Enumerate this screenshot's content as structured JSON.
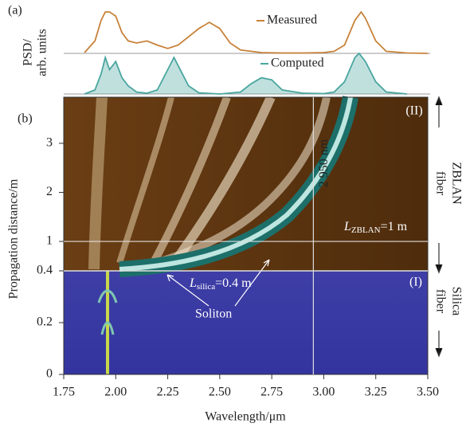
{
  "chart_data": {
    "type": "spectrogram",
    "panel_a_label": "(a)",
    "panel_b_label": "(b)",
    "psd_label": [
      "PSD/",
      "arb. units"
    ],
    "x_label": "Wavelength/μm",
    "y_label": "Propagation distance/m",
    "xlim": [
      1.75,
      3.5
    ],
    "xticks": [
      1.75,
      {
        "value": 2,
        "label": "2.00"
      },
      2.25,
      {
        "value": 2.5,
        "label": "2.50"
      },
      2.75,
      {
        "value": 3,
        "label": "3.00"
      },
      3.25,
      {
        "value": 3.5,
        "label": "3.50"
      }
    ],
    "spectra_ylim": [
      0,
      1
    ],
    "series": [
      {
        "name": "Measured",
        "color": "#c8823a",
        "x": [
          1.85,
          1.9,
          1.93,
          1.95,
          1.97,
          2.0,
          2.03,
          2.06,
          2.1,
          2.15,
          2.2,
          2.25,
          2.3,
          2.35,
          2.4,
          2.45,
          2.5,
          2.55,
          2.6,
          2.7,
          2.8,
          2.9,
          3.0,
          3.05,
          3.1,
          3.15,
          3.18,
          3.2,
          3.25,
          3.3,
          3.4,
          3.5
        ],
        "values": [
          0.02,
          0.3,
          0.8,
          1,
          1,
          0.9,
          0.5,
          0.3,
          0.25,
          0.3,
          0.2,
          0.12,
          0.2,
          0.4,
          0.6,
          0.75,
          0.6,
          0.25,
          0.08,
          0.02,
          0.01,
          0.01,
          0.02,
          0.05,
          0.2,
          0.8,
          1,
          0.85,
          0.3,
          0.05,
          0.01,
          0
        ]
      },
      {
        "name": "Computed",
        "color": "#4aa6a0",
        "x": [
          1.85,
          1.9,
          1.93,
          1.95,
          1.97,
          2.0,
          2.03,
          2.06,
          2.1,
          2.15,
          2.2,
          2.25,
          2.28,
          2.3,
          2.35,
          2.4,
          2.5,
          2.6,
          2.65,
          2.7,
          2.75,
          2.8,
          2.9,
          3.0,
          3.05,
          3.1,
          3.15,
          3.17,
          3.2,
          3.25,
          3.3,
          3.4
        ],
        "values": [
          0,
          0.1,
          0.5,
          0.9,
          0.6,
          0.8,
          0.4,
          0.2,
          0.05,
          0.02,
          0.1,
          0.6,
          0.9,
          0.7,
          0.2,
          0.03,
          0,
          0.05,
          0.25,
          0.4,
          0.35,
          0.1,
          0.02,
          0.01,
          0.05,
          0.3,
          0.9,
          1,
          0.8,
          0.3,
          0.05,
          0
        ]
      }
    ],
    "silica": {
      "ylim": [
        0,
        0.4
      ],
      "yticks": [
        0,
        0.2,
        0.4
      ],
      "section": "(I)",
      "side_label": [
        "Silica",
        "fiber"
      ]
    },
    "zblan": {
      "ylim": [
        0.4,
        3.94
      ],
      "yticks": [
        1,
        2,
        3
      ],
      "section": "(II)",
      "side_label": [
        "ZBLAN",
        "fiber"
      ]
    },
    "marker_wavelength": 2.95,
    "marker_label": "2 950 nm",
    "marker_distance": 1,
    "zblan_length": {
      "symbol": "L",
      "subscript": "ZBLAN",
      "rest": "=1 m"
    },
    "silica_length": {
      "symbol": "L",
      "subscript": "silica",
      "rest": "=0.4 m"
    },
    "soliton_label": "Soliton"
  }
}
